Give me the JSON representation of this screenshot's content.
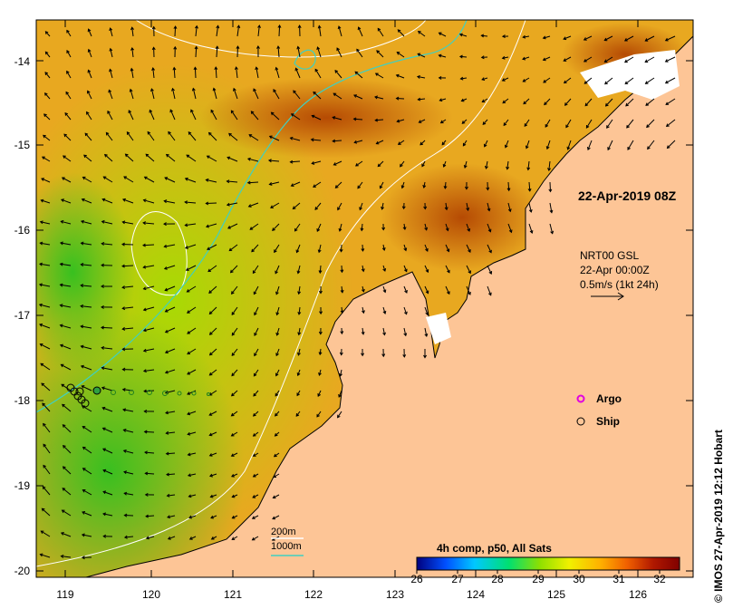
{
  "map": {
    "date_stamp": "22-Apr-2019 08Z",
    "currents_legend": {
      "line1": "NRT00 GSL",
      "line2": "22-Apr 00:00Z",
      "line3": "0.5m/s (1kt 24h)"
    },
    "symbols_legend": {
      "argo_label": "Argo",
      "ship_label": "Ship",
      "argo_color": "#e000e0"
    },
    "isobaths": {
      "label_200": "200m",
      "label_1000": "1000m",
      "color_200": "#ffffff",
      "color_1000": "#40d0c0"
    },
    "colorbar": {
      "title": "4h comp, p50, All Sats",
      "tick_labels": [
        "26",
        "27",
        "28",
        "29",
        "30",
        "31",
        "32"
      ],
      "range": [
        26,
        32.5
      ],
      "colors": [
        "#00007f",
        "#0050ff",
        "#00c8ff",
        "#00e070",
        "#90e000",
        "#f0f000",
        "#ffb000",
        "#f06000",
        "#b01800",
        "#800000"
      ]
    },
    "axes": {
      "lon_labels": [
        "119",
        "120",
        "121",
        "122",
        "123",
        "124",
        "125",
        "126"
      ],
      "lat_labels": [
        "-14",
        "-15",
        "-16",
        "-17",
        "-18",
        "-19",
        "-20"
      ],
      "lon_range": [
        118.65,
        126.7
      ],
      "lat_range": [
        -13.55,
        -20.1
      ]
    },
    "credit": "© IMOS 27-Apr-2019 12:12 Hobart"
  }
}
